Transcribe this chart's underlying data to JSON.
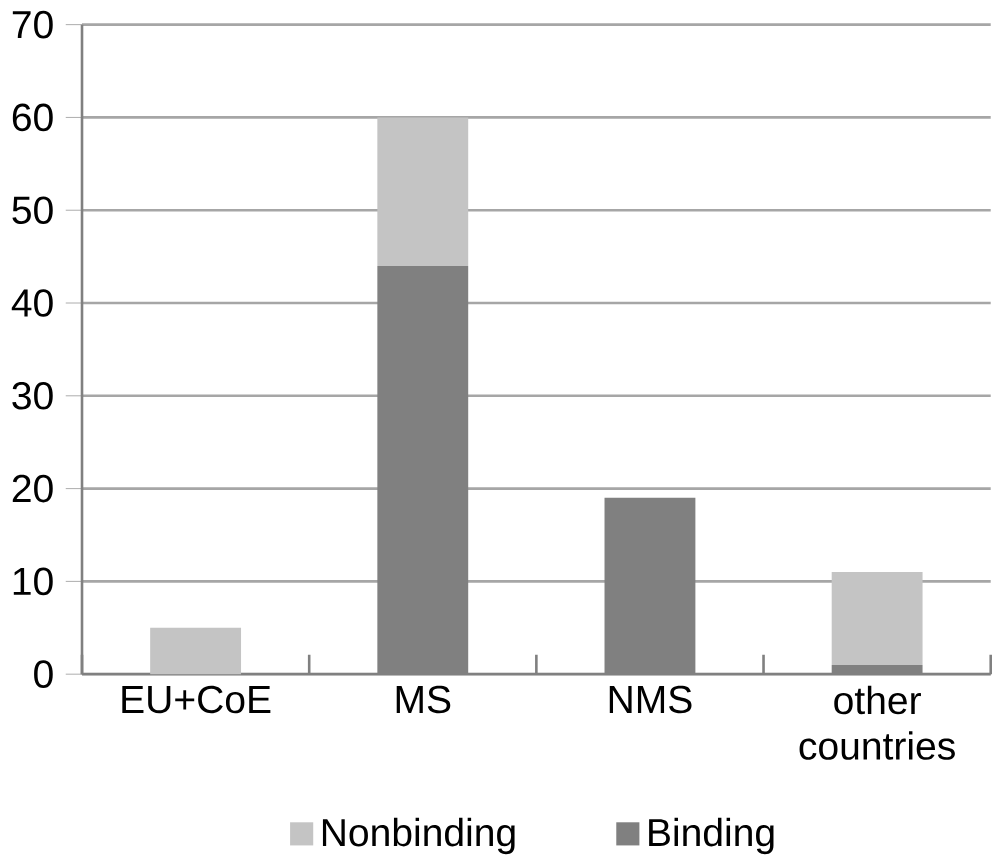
{
  "chart_data": {
    "type": "bar",
    "stacked": true,
    "categories": [
      "EU+CoE",
      "MS",
      "NMS",
      "other countries"
    ],
    "series": [
      {
        "name": "Binding",
        "color": "#808080",
        "values": [
          0,
          44,
          19,
          1
        ]
      },
      {
        "name": "Nonbinding",
        "color": "#c4c4c4",
        "values": [
          5,
          16,
          0,
          10
        ]
      }
    ],
    "ylim": [
      0,
      70
    ],
    "yticks": [
      0,
      10,
      20,
      30,
      40,
      50,
      60,
      70
    ],
    "grid": "y",
    "legend": "bottom"
  }
}
